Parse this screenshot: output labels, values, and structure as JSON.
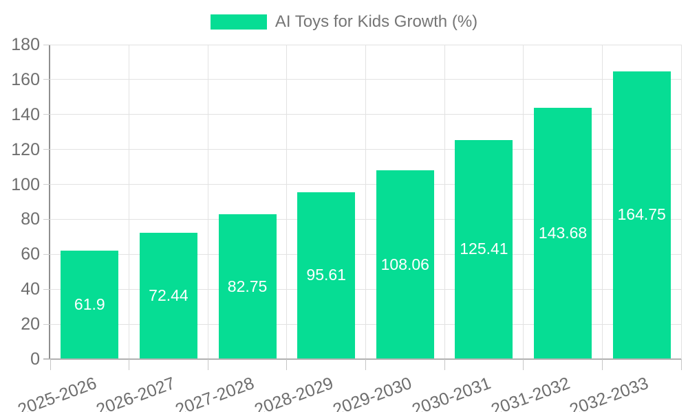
{
  "chart_data": {
    "type": "bar",
    "title": "AI Toys for Kids Growth (%)",
    "categories": [
      "2025-2026",
      "2026-2027",
      "2027-2028",
      "2028-2029",
      "2029-2030",
      "2030-2031",
      "2031-2032",
      "2032-2033"
    ],
    "values": [
      61.9,
      72.44,
      82.75,
      95.61,
      108.06,
      125.41,
      143.68,
      164.75
    ],
    "value_labels": [
      "61.9",
      "72.44",
      "82.75",
      "95.61",
      "108.06",
      "125.41",
      "143.68",
      "164.75"
    ],
    "xlabel": "",
    "ylabel": "",
    "ylim": [
      0,
      180
    ],
    "yticks": [
      0,
      20,
      40,
      60,
      80,
      100,
      120,
      140,
      160,
      180
    ],
    "grid": true,
    "legend_position": "top",
    "bar_color": "#06dd94",
    "value_label_color": "#ffffff",
    "axis_label_color": "#6e6e6e",
    "legend_text_color": "#757575"
  }
}
